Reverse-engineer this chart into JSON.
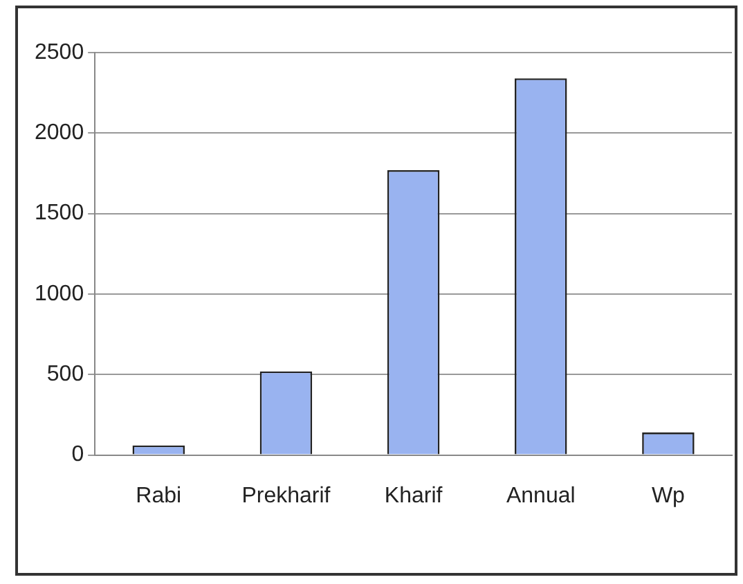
{
  "chart_data": {
    "type": "bar",
    "categories": [
      "Rabi",
      "Prekharif",
      "Kharif",
      "Annual",
      "Wp"
    ],
    "values": [
      60,
      520,
      1770,
      2340,
      140
    ],
    "color": "#99b3f0",
    "ylim": [
      0,
      2500
    ],
    "yticks": [
      0,
      500,
      1000,
      1500,
      2000,
      2500
    ],
    "grid": "y"
  }
}
